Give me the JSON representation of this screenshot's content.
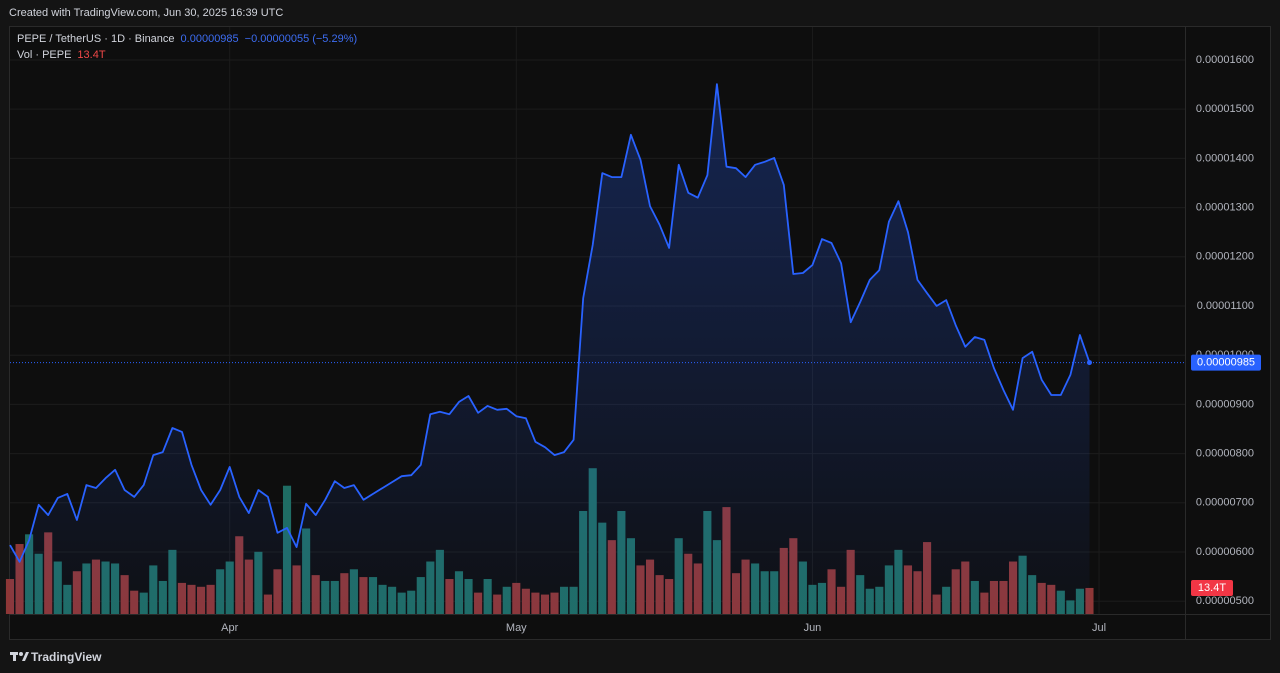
{
  "watermark": "Created with TradingView.com, Jun 30, 2025 16:39 UTC",
  "footer": "TradingView",
  "chart_data": {
    "type": "line",
    "title": "PEPE / TetherUS · 1D · Binance",
    "last_price": {
      "value": 9.85e-06,
      "label": "0.00000985"
    },
    "change": {
      "value": -5.5e-07,
      "label": "−0.00000055"
    },
    "change_percent": {
      "value": -5.29,
      "label": "(−5.29%)"
    },
    "color": "#2962ff",
    "values": [
      6.14e-06,
      5.8e-06,
      6.24e-06,
      6.96e-06,
      6.75e-06,
      7.1e-06,
      7.18e-06,
      6.65e-06,
      7.36e-06,
      7.3e-06,
      7.5e-06,
      7.67e-06,
      7.26e-06,
      7.12e-06,
      7.36e-06,
      7.97e-06,
      8.03e-06,
      8.52e-06,
      8.44e-06,
      7.77e-06,
      7.26e-06,
      6.96e-06,
      7.26e-06,
      7.73e-06,
      7.12e-06,
      6.79e-06,
      7.26e-06,
      7.12e-06,
      6.39e-06,
      6.49e-06,
      6.1e-06,
      6.98e-06,
      6.75e-06,
      7.06e-06,
      7.44e-06,
      7.3e-06,
      7.36e-06,
      7.06e-06,
      7.18e-06,
      7.3e-06,
      7.42e-06,
      7.54e-06,
      7.56e-06,
      7.77e-06,
      8.8e-06,
      8.85e-06,
      8.8e-06,
      9.05e-06,
      9.17e-06,
      8.83e-06,
      8.97e-06,
      8.89e-06,
      8.91e-06,
      8.76e-06,
      8.72e-06,
      8.24e-06,
      8.13e-06,
      7.97e-06,
      8.03e-06,
      8.28e-06,
      1.116e-05,
      1.224e-05,
      1.37e-05,
      1.362e-05,
      1.362e-05,
      1.448e-05,
      1.397e-05,
      1.303e-05,
      1.265e-05,
      1.218e-05,
      1.387e-05,
      1.33e-05,
      1.32e-05,
      1.366e-05,
      1.551e-05,
      1.383e-05,
      1.38e-05,
      1.362e-05,
      1.387e-05,
      1.393e-05,
      1.401e-05,
      1.346e-05,
      1.165e-05,
      1.167e-05,
      1.183e-05,
      1.236e-05,
      1.228e-05,
      1.187e-05,
      1.067e-05,
      1.108e-05,
      1.153e-05,
      1.173e-05,
      1.271e-05,
      1.313e-05,
      1.25e-05,
      1.153e-05,
      1.126e-05,
      1.1e-05,
      1.112e-05,
      1.061e-05,
      1.017e-05,
      1.037e-05,
      1.031e-05,
      9.74e-06,
      9.29e-06,
      8.89e-06,
      9.94e-06,
      1.007e-05,
      9.5e-06,
      9.19e-06,
      9.19e-06,
      9.6e-06,
      1.041e-05,
      9.85e-06
    ],
    "volume": {
      "name": "Vol · PEPE",
      "up_color": "#1f6d64",
      "down_color": "#8e3737",
      "ylim": [
        0,
        302
      ],
      "last_label": "13.4T",
      "values": [
        18,
        36,
        41,
        31,
        42,
        27,
        15,
        22,
        26,
        28,
        27,
        26,
        20,
        12,
        11,
        25,
        17,
        33,
        16,
        15,
        14,
        15,
        23,
        27,
        40,
        28,
        32,
        10,
        23,
        66,
        25,
        44,
        20,
        17,
        17,
        21,
        23,
        19,
        19,
        15,
        14,
        11,
        12,
        19,
        27,
        33,
        18,
        22,
        18,
        11,
        18,
        10,
        14,
        16,
        13,
        11,
        10,
        11,
        14,
        14,
        53,
        75,
        47,
        38,
        53,
        39,
        25,
        28,
        20,
        18,
        39,
        31,
        26,
        53,
        38,
        55,
        21,
        28,
        26,
        22,
        22,
        34,
        39,
        27,
        15,
        16,
        23,
        14,
        33,
        20,
        13,
        14,
        25,
        33,
        25,
        22,
        37,
        10,
        14,
        23,
        27,
        17,
        11,
        17,
        17,
        27,
        30,
        20,
        16,
        15,
        12,
        7,
        13,
        13.4
      ]
    },
    "ylim": [
      4.74e-06,
      1.667e-05
    ],
    "yticks": [
      {
        "value": 5e-06,
        "label": "0.00000500"
      },
      {
        "value": 6e-06,
        "label": "0.00000600"
      },
      {
        "value": 7e-06,
        "label": "0.00000700"
      },
      {
        "value": 8e-06,
        "label": "0.00000800"
      },
      {
        "value": 9e-06,
        "label": "0.00000900"
      },
      {
        "value": 1e-05,
        "label": "0.00001000"
      },
      {
        "value": 1.1e-05,
        "label": "0.00001100"
      },
      {
        "value": 1.2e-05,
        "label": "0.00001200"
      },
      {
        "value": 1.3e-05,
        "label": "0.00001300"
      },
      {
        "value": 1.4e-05,
        "label": "0.00001400"
      },
      {
        "value": 1.5e-05,
        "label": "0.00001500"
      },
      {
        "value": 1.6e-05,
        "label": "0.00001600"
      }
    ],
    "xlim": [
      0,
      123
    ],
    "xticks": [
      {
        "value": 23,
        "label": "Apr"
      },
      {
        "value": 53,
        "label": "May"
      },
      {
        "value": 84,
        "label": "Jun"
      },
      {
        "value": 114,
        "label": "Jul"
      }
    ],
    "grid": true
  }
}
